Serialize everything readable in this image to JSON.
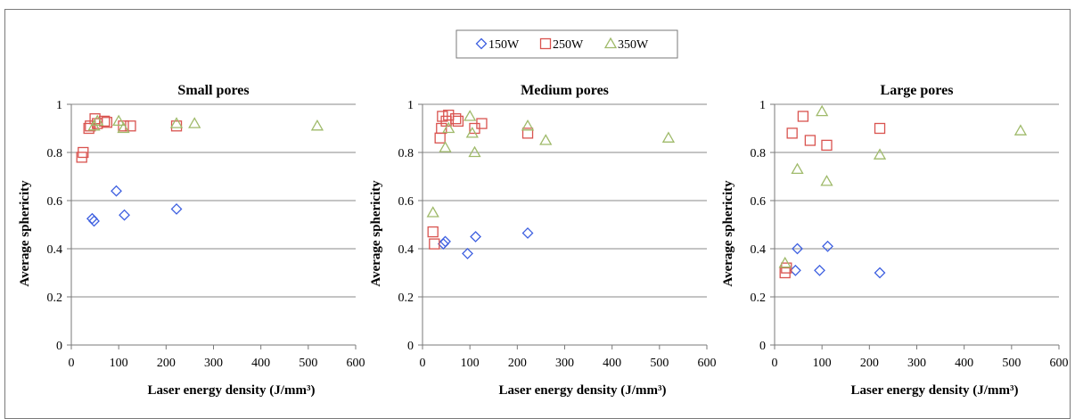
{
  "colors": {
    "150W": "#3d5fe0",
    "250W": "#d9534f",
    "350W": "#9fba6a",
    "grid": "#8a8a8a",
    "axis": "#7a7a7a"
  },
  "legend": [
    {
      "label": "150W",
      "marker": "diamond"
    },
    {
      "label": "250W",
      "marker": "square"
    },
    {
      "label": "350W",
      "marker": "triangle"
    }
  ],
  "chart_data": [
    {
      "type": "scatter",
      "title": "Small pores",
      "xlabel": "Laser energy density (J/mm³)",
      "ylabel": "Average sphericity",
      "xlim": [
        0,
        600
      ],
      "ylim": [
        0,
        1
      ],
      "xticks": [
        "0",
        "100",
        "200",
        "300",
        "400",
        "500",
        "600"
      ],
      "yticks": [
        "0",
        "0.2",
        "0.4",
        "0.6",
        "0.8",
        "1"
      ],
      "grid": true,
      "series": [
        {
          "name": "150W",
          "marker": "diamond",
          "points": [
            [
              44,
              0.525
            ],
            [
              48,
              0.515
            ],
            [
              95,
              0.64
            ],
            [
              112,
              0.54
            ],
            [
              222,
              0.565
            ]
          ]
        },
        {
          "name": "250W",
          "marker": "square",
          "points": [
            [
              22,
              0.78
            ],
            [
              25,
              0.8
            ],
            [
              37,
              0.9
            ],
            [
              40,
              0.91
            ],
            [
              50,
              0.94
            ],
            [
              55,
              0.92
            ],
            [
              70,
              0.93
            ],
            [
              75,
              0.925
            ],
            [
              110,
              0.91
            ],
            [
              125,
              0.91
            ],
            [
              222,
              0.91
            ]
          ]
        },
        {
          "name": "350W",
          "marker": "triangle",
          "points": [
            [
              48,
              0.91
            ],
            [
              55,
              0.93
            ],
            [
              100,
              0.93
            ],
            [
              110,
              0.9
            ],
            [
              222,
              0.92
            ],
            [
              260,
              0.92
            ],
            [
              519,
              0.91
            ]
          ]
        }
      ]
    },
    {
      "type": "scatter",
      "title": "Medium pores",
      "xlabel": "Laser energy density (J/mm³)",
      "ylabel": "Average sphericity",
      "xlim": [
        0,
        600
      ],
      "ylim": [
        0,
        1
      ],
      "xticks": [
        "0",
        "100",
        "200",
        "300",
        "400",
        "500",
        "600"
      ],
      "yticks": [
        "0",
        "0.2",
        "0.4",
        "0.6",
        "0.8",
        "1"
      ],
      "grid": true,
      "series": [
        {
          "name": "150W",
          "marker": "diamond",
          "points": [
            [
              44,
              0.42
            ],
            [
              48,
              0.43
            ],
            [
              95,
              0.38
            ],
            [
              112,
              0.45
            ],
            [
              222,
              0.465
            ]
          ]
        },
        {
          "name": "250W",
          "marker": "square",
          "points": [
            [
              22,
              0.47
            ],
            [
              25,
              0.42
            ],
            [
              37,
              0.86
            ],
            [
              40,
              0.9
            ],
            [
              42,
              0.95
            ],
            [
              50,
              0.93
            ],
            [
              55,
              0.955
            ],
            [
              70,
              0.94
            ],
            [
              75,
              0.93
            ],
            [
              110,
              0.9
            ],
            [
              125,
              0.92
            ],
            [
              222,
              0.88
            ]
          ]
        },
        {
          "name": "350W",
          "marker": "triangle",
          "points": [
            [
              22,
              0.55
            ],
            [
              48,
              0.82
            ],
            [
              55,
              0.9
            ],
            [
              100,
              0.95
            ],
            [
              105,
              0.88
            ],
            [
              110,
              0.8
            ],
            [
              222,
              0.91
            ],
            [
              260,
              0.85
            ],
            [
              519,
              0.86
            ]
          ]
        }
      ]
    },
    {
      "type": "scatter",
      "title": "Large pores",
      "xlabel": "Laser energy density (J/mm³)",
      "ylabel": "Average sphericity",
      "xlim": [
        0,
        600
      ],
      "ylim": [
        0,
        1
      ],
      "xticks": [
        "0",
        "100",
        "200",
        "300",
        "400",
        "500",
        "600"
      ],
      "yticks": [
        "0",
        "0.2",
        "0.4",
        "0.6",
        "0.8",
        "1"
      ],
      "grid": true,
      "series": [
        {
          "name": "150W",
          "marker": "diamond",
          "points": [
            [
              44,
              0.31
            ],
            [
              48,
              0.4
            ],
            [
              95,
              0.31
            ],
            [
              112,
              0.41
            ],
            [
              222,
              0.3
            ]
          ]
        },
        {
          "name": "250W",
          "marker": "square",
          "points": [
            [
              22,
              0.3
            ],
            [
              25,
              0.32
            ],
            [
              37,
              0.88
            ],
            [
              60,
              0.95
            ],
            [
              75,
              0.85
            ],
            [
              110,
              0.83
            ],
            [
              222,
              0.9
            ]
          ]
        },
        {
          "name": "350W",
          "marker": "triangle",
          "points": [
            [
              22,
              0.34
            ],
            [
              48,
              0.73
            ],
            [
              100,
              0.97
            ],
            [
              110,
              0.68
            ],
            [
              222,
              0.79
            ],
            [
              519,
              0.89
            ]
          ]
        }
      ]
    }
  ]
}
